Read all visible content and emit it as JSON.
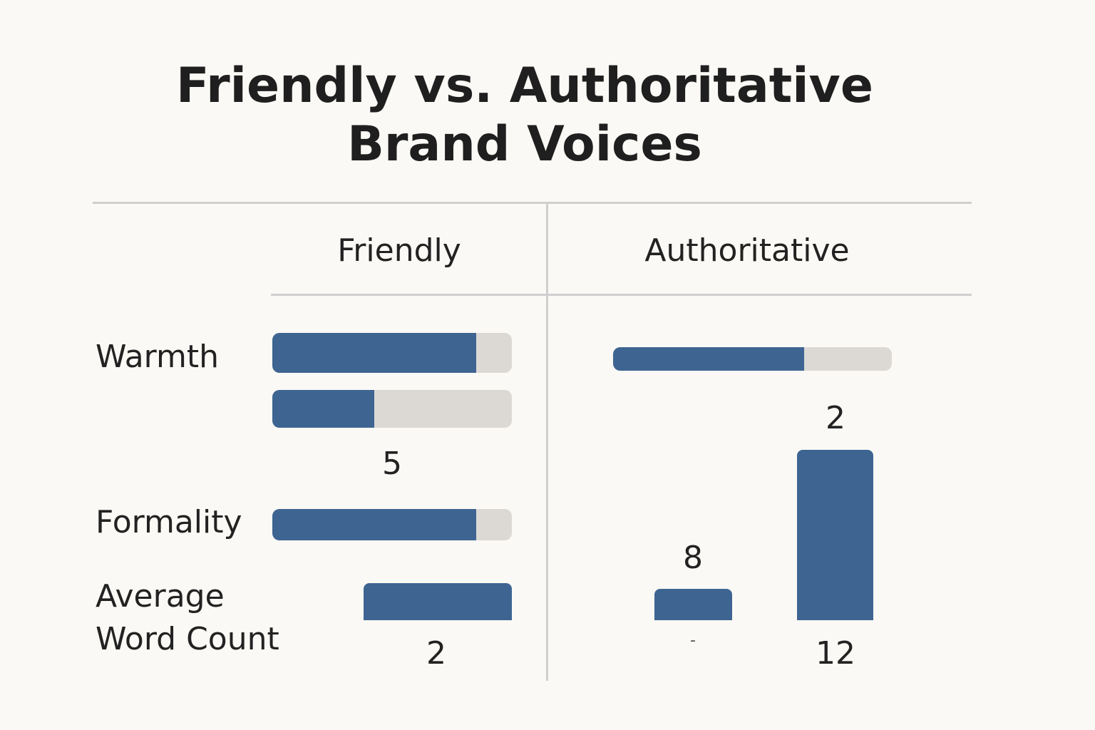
{
  "title": {
    "line1": "Friendly vs. Authoritative",
    "line2": "Brand Voices"
  },
  "columns": {
    "friendly": "Friendly",
    "authoritative": "Authoritative"
  },
  "rows": {
    "warmth": "Warmth",
    "formality": "Formality",
    "avg_word_count_line1": "Average",
    "avg_word_count_line2": "Word Count"
  },
  "numbers": {
    "friendly_warmth_label": "5",
    "friendly_word_count_label": "2",
    "authoritative_top_label": "2",
    "authoritative_short_bar_label": "8",
    "authoritative_tall_bar_label": "12",
    "authoritative_tick_mark": "-"
  },
  "colors": {
    "bar": "#3e6592",
    "track": "#dcd9d5",
    "background": "#fbf9f5",
    "rule": "#cfcfcf"
  },
  "chart_data": {
    "type": "bar",
    "title": "Friendly vs. Authoritative Brand Voices",
    "columns": [
      "Friendly",
      "Authoritative"
    ],
    "rows": [
      "Warmth",
      "Formality",
      "Average Word Count"
    ],
    "progress_bars": [
      {
        "column": "Friendly",
        "row": "Warmth",
        "fill": 0.85
      },
      {
        "column": "Friendly",
        "row": "Warmth",
        "fill": 0.425
      },
      {
        "column": "Friendly",
        "row": "Formality",
        "fill": 0.85
      },
      {
        "column": "Authoritative",
        "row": "Warmth",
        "fill": 0.685
      }
    ],
    "word_count_bars": [
      {
        "column": "Friendly",
        "value": 2
      },
      {
        "column": "Authoritative",
        "value": 8
      },
      {
        "column": "Authoritative",
        "value": 12
      }
    ],
    "value_labels": [
      "5",
      "2",
      "2",
      "8",
      "12"
    ]
  }
}
